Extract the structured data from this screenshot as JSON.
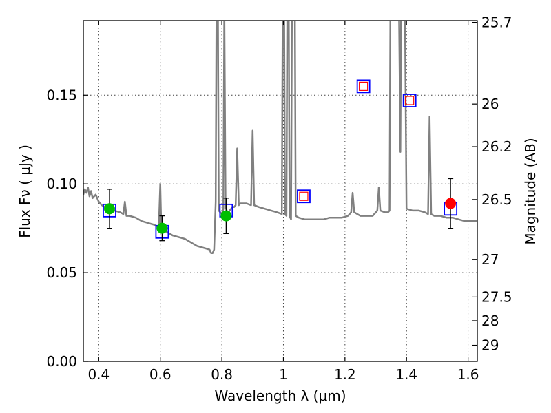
{
  "chart_data": {
    "type": "scatter",
    "xlabel": "Wavelength  λ (μm)",
    "ylabel": "Flux  Fν  ( μJy )",
    "y2label": "Magnitude (AB)",
    "xlim": [
      0.35,
      1.63
    ],
    "ylim": [
      0.0,
      0.192
    ],
    "x_ticks": [
      0.4,
      0.6,
      0.8,
      1.0,
      1.2,
      1.4,
      1.6
    ],
    "x_tick_labels": [
      "0.4",
      "0.6",
      "0.8",
      "1",
      "1.2",
      "1.4",
      "1.6"
    ],
    "y_ticks": [
      0.0,
      0.05,
      0.1,
      0.15
    ],
    "y_tick_labels": [
      "0.00",
      "0.05",
      "0.10",
      "0.15"
    ],
    "y2_ticks": [
      {
        "label": "25.7",
        "flux": 0.191
      },
      {
        "label": "26",
        "flux": 0.145
      },
      {
        "label": "26.2",
        "flux": 0.121
      },
      {
        "label": "26.5",
        "flux": 0.0912
      },
      {
        "label": "27",
        "flux": 0.0575
      },
      {
        "label": "27.5",
        "flux": 0.0363
      },
      {
        "label": "28",
        "flux": 0.0229
      },
      {
        "label": "29",
        "flux": 0.0091
      }
    ],
    "grid": true,
    "colors": {
      "spectrum": "#808080",
      "model_box": "#0000ff",
      "detection": "#00bf00",
      "detection_ir": "#ff0000",
      "upper_limit": "#ff0000",
      "errorbar": "#000000"
    },
    "model_spectrum": {
      "name": "model spectrum",
      "points": [
        [
          0.35,
          0.094
        ],
        [
          0.355,
          0.097
        ],
        [
          0.36,
          0.095
        ],
        [
          0.365,
          0.098
        ],
        [
          0.37,
          0.093
        ],
        [
          0.375,
          0.096
        ],
        [
          0.38,
          0.092
        ],
        [
          0.39,
          0.094
        ],
        [
          0.4,
          0.09
        ],
        [
          0.41,
          0.088
        ],
        [
          0.42,
          0.087
        ],
        [
          0.43,
          0.086
        ],
        [
          0.45,
          0.085
        ],
        [
          0.47,
          0.084
        ],
        [
          0.48,
          0.083
        ],
        [
          0.485,
          0.09
        ],
        [
          0.49,
          0.082
        ],
        [
          0.5,
          0.082
        ],
        [
          0.52,
          0.081
        ],
        [
          0.54,
          0.079
        ],
        [
          0.56,
          0.078
        ],
        [
          0.58,
          0.077
        ],
        [
          0.59,
          0.076
        ],
        [
          0.595,
          0.075
        ],
        [
          0.6,
          0.1
        ],
        [
          0.603,
          0.077
        ],
        [
          0.62,
          0.073
        ],
        [
          0.64,
          0.071
        ],
        [
          0.66,
          0.07
        ],
        [
          0.68,
          0.069
        ],
        [
          0.7,
          0.067
        ],
        [
          0.72,
          0.065
        ],
        [
          0.74,
          0.064
        ],
        [
          0.76,
          0.063
        ],
        [
          0.765,
          0.061
        ],
        [
          0.77,
          0.061
        ],
        [
          0.775,
          0.063
        ],
        [
          0.78,
          0.09
        ],
        [
          0.785,
          0.3
        ],
        [
          0.79,
          0.085
        ],
        [
          0.8,
          0.083
        ],
        [
          0.805,
          0.086
        ],
        [
          0.808,
          0.2
        ],
        [
          0.812,
          0.087
        ],
        [
          0.82,
          0.083
        ],
        [
          0.825,
          0.085
        ],
        [
          0.83,
          0.086
        ],
        [
          0.835,
          0.087
        ],
        [
          0.84,
          0.087
        ],
        [
          0.845,
          0.088
        ],
        [
          0.85,
          0.12
        ],
        [
          0.855,
          0.088
        ],
        [
          0.86,
          0.089
        ],
        [
          0.88,
          0.089
        ],
        [
          0.895,
          0.088
        ],
        [
          0.9,
          0.13
        ],
        [
          0.905,
          0.088
        ],
        [
          0.92,
          0.087
        ],
        [
          0.94,
          0.086
        ],
        [
          0.96,
          0.085
        ],
        [
          0.98,
          0.084
        ],
        [
          0.995,
          0.083
        ],
        [
          1.0,
          0.3
        ],
        [
          1.005,
          0.083
        ],
        [
          1.01,
          0.082
        ],
        [
          1.015,
          0.3
        ],
        [
          1.02,
          0.082
        ],
        [
          1.025,
          0.08
        ],
        [
          1.03,
          0.3
        ],
        [
          1.035,
          0.3
        ],
        [
          1.04,
          0.082
        ],
        [
          1.05,
          0.081
        ],
        [
          1.07,
          0.08
        ],
        [
          1.09,
          0.08
        ],
        [
          1.11,
          0.08
        ],
        [
          1.13,
          0.08
        ],
        [
          1.15,
          0.081
        ],
        [
          1.17,
          0.081
        ],
        [
          1.19,
          0.081
        ],
        [
          1.21,
          0.082
        ],
        [
          1.22,
          0.084
        ],
        [
          1.225,
          0.095
        ],
        [
          1.23,
          0.084
        ],
        [
          1.25,
          0.082
        ],
        [
          1.27,
          0.082
        ],
        [
          1.29,
          0.082
        ],
        [
          1.305,
          0.085
        ],
        [
          1.31,
          0.098
        ],
        [
          1.315,
          0.085
        ],
        [
          1.33,
          0.084
        ],
        [
          1.34,
          0.084
        ],
        [
          1.345,
          0.085
        ],
        [
          1.35,
          0.3
        ],
        [
          1.355,
          0.3
        ],
        [
          1.36,
          0.3
        ],
        [
          1.37,
          0.3
        ],
        [
          1.38,
          0.118
        ],
        [
          1.385,
          0.3
        ],
        [
          1.39,
          0.3
        ],
        [
          1.4,
          0.086
        ],
        [
          1.42,
          0.085
        ],
        [
          1.44,
          0.085
        ],
        [
          1.46,
          0.084
        ],
        [
          1.47,
          0.083
        ],
        [
          1.475,
          0.138
        ],
        [
          1.48,
          0.083
        ],
        [
          1.49,
          0.082
        ],
        [
          1.51,
          0.082
        ],
        [
          1.53,
          0.081
        ],
        [
          1.55,
          0.081
        ],
        [
          1.57,
          0.08
        ],
        [
          1.59,
          0.079
        ],
        [
          1.61,
          0.079
        ],
        [
          1.63,
          0.079
        ]
      ]
    },
    "model_boxes": [
      {
        "x": 0.435,
        "y": 0.085
      },
      {
        "x": 0.606,
        "y": 0.073
      },
      {
        "x": 0.814,
        "y": 0.085
      },
      {
        "x": 1.066,
        "y": 0.093
      },
      {
        "x": 1.26,
        "y": 0.155
      },
      {
        "x": 1.41,
        "y": 0.147
      },
      {
        "x": 1.543,
        "y": 0.086
      }
    ],
    "detections": [
      {
        "x": 0.435,
        "y": 0.086,
        "yerr": 0.011,
        "color": "#00bf00"
      },
      {
        "x": 0.606,
        "y": 0.075,
        "yerr": 0.007,
        "color": "#00bf00"
      },
      {
        "x": 0.814,
        "y": 0.082,
        "yerr": 0.01,
        "color": "#00bf00"
      },
      {
        "x": 1.543,
        "y": 0.089,
        "yerr": 0.014,
        "color": "#ff0000"
      }
    ],
    "upper_limits": [
      {
        "x": 1.066,
        "y": 0.093
      },
      {
        "x": 1.26,
        "y": 0.155
      },
      {
        "x": 1.41,
        "y": 0.147
      }
    ]
  }
}
